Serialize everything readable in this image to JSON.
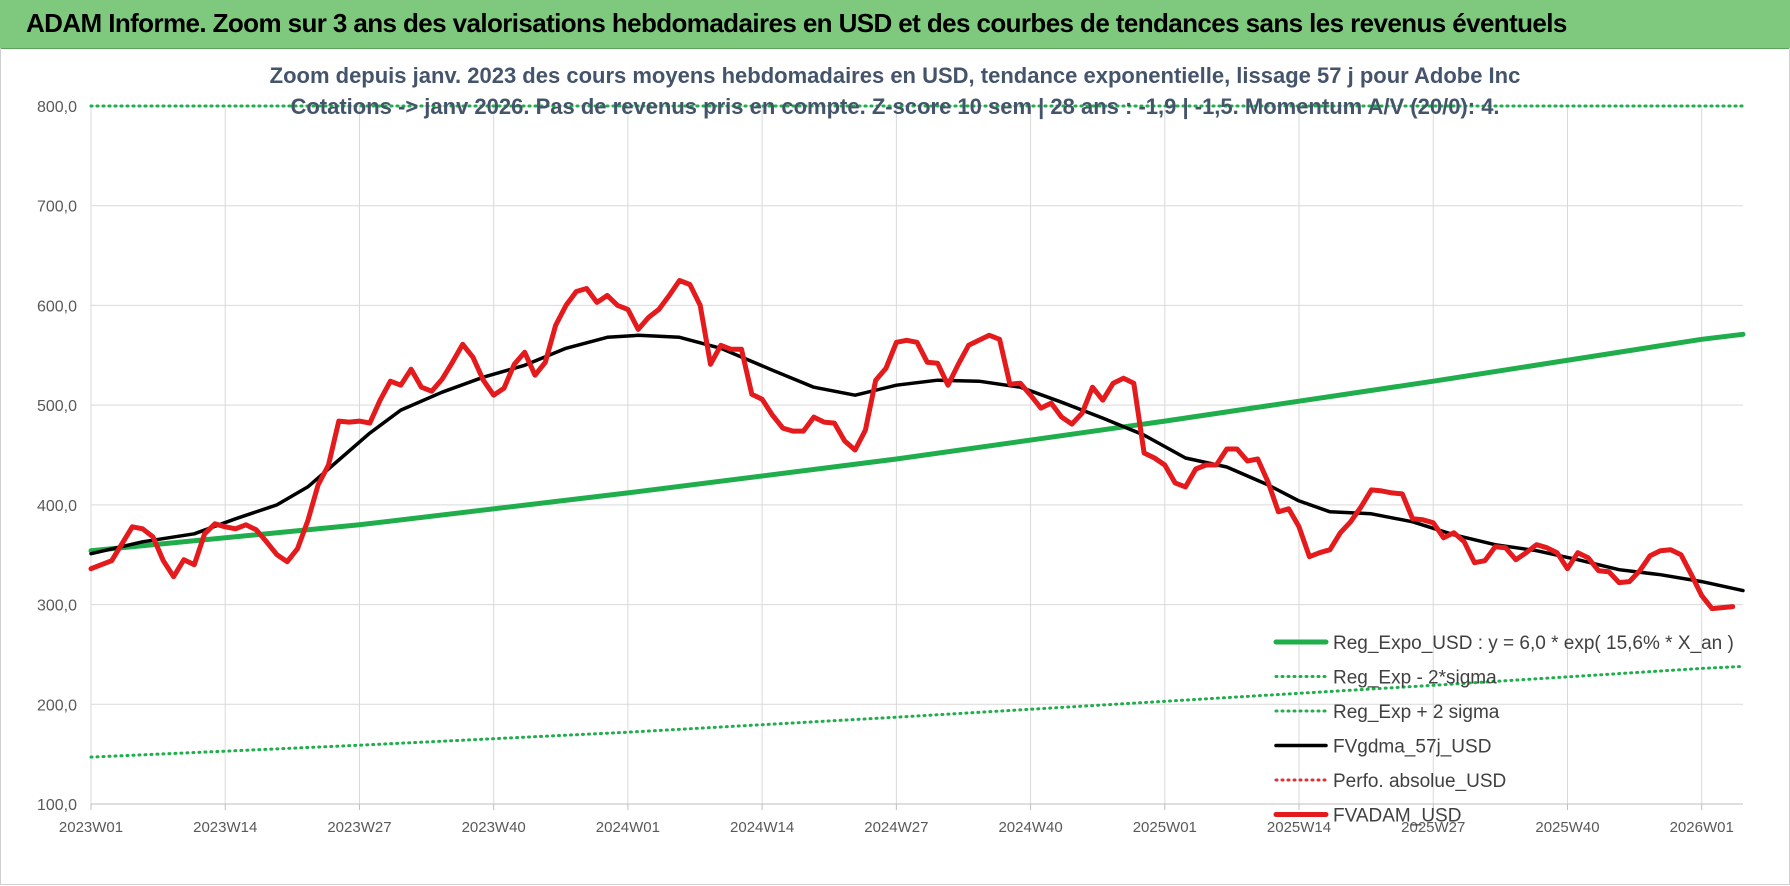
{
  "banner": {
    "title": "ADAM Informe. Zoom sur 3 ans des valorisations hebdomadaires en USD et des courbes de tendances sans les revenus éventuels"
  },
  "colors": {
    "banner_bg": "#7fc97f",
    "regression": "#1fae4b",
    "sigma": "#1fae4b",
    "gdma": "#000000",
    "perfo": "#e03030",
    "fvadam": "#e41a1c",
    "subtitle": "#44546a"
  },
  "chart_data": {
    "type": "line",
    "title": "Zoom depuis janv. 2023 des cours moyens hebdomadaires en USD, tendance exponentielle, lissage 57 j pour Adobe Inc",
    "subtitle": "Cotations -> janv 2026. Pas de revenus pris en compte. Z-score 10 sem | 28 ans : -1,9 | -1,5. Momentum A/V (20/0): 4.",
    "xlabel": "",
    "ylabel": "",
    "ylim": [
      100,
      800
    ],
    "y_ticks": [
      "100,0",
      "200,0",
      "300,0",
      "400,0",
      "500,0",
      "600,0",
      "700,0",
      "800,0"
    ],
    "x_range_weeks": [
      0,
      160
    ],
    "x_ticks": [
      {
        "label": "2023W01",
        "week": 0
      },
      {
        "label": "2023W14",
        "week": 13
      },
      {
        "label": "2023W27",
        "week": 26
      },
      {
        "label": "2023W40",
        "week": 39
      },
      {
        "label": "2024W01",
        "week": 52
      },
      {
        "label": "2024W14",
        "week": 65
      },
      {
        "label": "2024W27",
        "week": 78
      },
      {
        "label": "2024W40",
        "week": 91
      },
      {
        "label": "2025W01",
        "week": 104
      },
      {
        "label": "2025W14",
        "week": 117
      },
      {
        "label": "2025W27",
        "week": 130
      },
      {
        "label": "2025W40",
        "week": 143
      },
      {
        "label": "2026W01",
        "week": 156
      }
    ],
    "grid": true,
    "legend_position": "bottom-right",
    "series": [
      {
        "name": "Reg_Expo_USD : y = 6,0 * exp( 15,6% *  X_an )",
        "style": "solid-thick",
        "color": "#1fae4b",
        "points": [
          [
            0,
            354
          ],
          [
            26,
            380
          ],
          [
            52,
            412
          ],
          [
            78,
            446
          ],
          [
            104,
            484
          ],
          [
            130,
            524
          ],
          [
            156,
            566
          ],
          [
            160,
            571
          ]
        ]
      },
      {
        "name": "Reg_Exp - 2*sigma",
        "style": "dotted",
        "color": "#1fae4b",
        "points": [
          [
            0,
            147
          ],
          [
            26,
            159
          ],
          [
            52,
            172
          ],
          [
            78,
            187
          ],
          [
            104,
            203
          ],
          [
            130,
            219
          ],
          [
            156,
            236
          ],
          [
            160,
            238
          ]
        ]
      },
      {
        "name": "Reg_Exp + 2 sigma",
        "style": "dotted",
        "color": "#1fae4b",
        "points": [
          [
            0,
            800
          ],
          [
            160,
            800
          ]
        ]
      },
      {
        "name": "FVgdma_57j_USD",
        "style": "solid",
        "color": "#000000",
        "points": [
          [
            0,
            351
          ],
          [
            5,
            363
          ],
          [
            10,
            371
          ],
          [
            14,
            386
          ],
          [
            18,
            400
          ],
          [
            21,
            418
          ],
          [
            24,
            445
          ],
          [
            27,
            472
          ],
          [
            30,
            495
          ],
          [
            34,
            513
          ],
          [
            38,
            528
          ],
          [
            42,
            540
          ],
          [
            46,
            557
          ],
          [
            50,
            568
          ],
          [
            53,
            570
          ],
          [
            57,
            568
          ],
          [
            61,
            557
          ],
          [
            66,
            535
          ],
          [
            70,
            518
          ],
          [
            74,
            510
          ],
          [
            78,
            520
          ],
          [
            82,
            525
          ],
          [
            86,
            524
          ],
          [
            90,
            518
          ],
          [
            94,
            503
          ],
          [
            98,
            487
          ],
          [
            102,
            470
          ],
          [
            106,
            447
          ],
          [
            110,
            438
          ],
          [
            114,
            420
          ],
          [
            117,
            404
          ],
          [
            120,
            393
          ],
          [
            124,
            391
          ],
          [
            128,
            383
          ],
          [
            132,
            370
          ],
          [
            136,
            360
          ],
          [
            140,
            354
          ],
          [
            144,
            345
          ],
          [
            148,
            335
          ],
          [
            152,
            330
          ],
          [
            156,
            323
          ],
          [
            160,
            314
          ]
        ]
      },
      {
        "name": "Perfo. absolue_USD",
        "style": "dotted",
        "color": "#e03030",
        "points": []
      },
      {
        "name": "FVADAM_USD",
        "style": "solid-thick",
        "color": "#e41a1c",
        "points": [
          [
            0,
            336
          ],
          [
            2,
            344
          ],
          [
            4,
            378
          ],
          [
            5,
            376
          ],
          [
            6,
            368
          ],
          [
            7,
            344
          ],
          [
            8,
            328
          ],
          [
            9,
            345
          ],
          [
            10,
            340
          ],
          [
            11,
            371
          ],
          [
            12,
            381
          ],
          [
            13,
            378
          ],
          [
            14,
            376
          ],
          [
            15,
            380
          ],
          [
            16,
            375
          ],
          [
            17,
            363
          ],
          [
            18,
            350
          ],
          [
            19,
            343
          ],
          [
            20,
            356
          ],
          [
            21,
            384
          ],
          [
            22,
            420
          ],
          [
            23,
            440
          ],
          [
            24,
            484
          ],
          [
            25,
            483
          ],
          [
            26,
            484
          ],
          [
            27,
            482
          ],
          [
            28,
            505
          ],
          [
            29,
            524
          ],
          [
            30,
            520
          ],
          [
            31,
            536
          ],
          [
            32,
            518
          ],
          [
            33,
            514
          ],
          [
            34,
            526
          ],
          [
            35,
            543
          ],
          [
            36,
            561
          ],
          [
            37,
            548
          ],
          [
            38,
            525
          ],
          [
            39,
            510
          ],
          [
            40,
            517
          ],
          [
            41,
            541
          ],
          [
            42,
            553
          ],
          [
            43,
            530
          ],
          [
            44,
            543
          ],
          [
            45,
            580
          ],
          [
            46,
            600
          ],
          [
            47,
            614
          ],
          [
            48,
            617
          ],
          [
            49,
            603
          ],
          [
            50,
            610
          ],
          [
            51,
            600
          ],
          [
            52,
            596
          ],
          [
            53,
            576
          ],
          [
            54,
            588
          ],
          [
            55,
            596
          ],
          [
            56,
            610
          ],
          [
            57,
            625
          ],
          [
            58,
            621
          ],
          [
            59,
            600
          ],
          [
            60,
            541
          ],
          [
            61,
            560
          ],
          [
            62,
            556
          ],
          [
            63,
            556
          ],
          [
            64,
            511
          ],
          [
            65,
            506
          ],
          [
            66,
            490
          ],
          [
            67,
            477
          ],
          [
            68,
            474
          ],
          [
            69,
            474
          ],
          [
            70,
            488
          ],
          [
            71,
            483
          ],
          [
            72,
            482
          ],
          [
            73,
            464
          ],
          [
            74,
            455
          ],
          [
            75,
            475
          ],
          [
            76,
            525
          ],
          [
            77,
            537
          ],
          [
            78,
            563
          ],
          [
            79,
            565
          ],
          [
            80,
            563
          ],
          [
            81,
            543
          ],
          [
            82,
            542
          ],
          [
            83,
            520
          ],
          [
            84,
            541
          ],
          [
            85,
            560
          ],
          [
            86,
            565
          ],
          [
            87,
            570
          ],
          [
            88,
            566
          ],
          [
            89,
            521
          ],
          [
            90,
            522
          ],
          [
            91,
            510
          ],
          [
            92,
            497
          ],
          [
            93,
            502
          ],
          [
            94,
            488
          ],
          [
            95,
            481
          ],
          [
            96,
            492
          ],
          [
            97,
            518
          ],
          [
            98,
            505
          ],
          [
            99,
            522
          ],
          [
            100,
            527
          ],
          [
            101,
            522
          ],
          [
            102,
            452
          ],
          [
            103,
            447
          ],
          [
            104,
            440
          ],
          [
            105,
            422
          ],
          [
            106,
            418
          ],
          [
            107,
            436
          ],
          [
            108,
            440
          ],
          [
            109,
            440
          ],
          [
            110,
            456
          ],
          [
            111,
            456
          ],
          [
            112,
            444
          ],
          [
            113,
            446
          ],
          [
            114,
            423
          ],
          [
            115,
            393
          ],
          [
            116,
            396
          ],
          [
            117,
            378
          ],
          [
            118,
            348
          ],
          [
            119,
            352
          ],
          [
            120,
            355
          ],
          [
            121,
            372
          ],
          [
            122,
            383
          ],
          [
            123,
            398
          ],
          [
            124,
            415
          ],
          [
            125,
            414
          ],
          [
            126,
            412
          ],
          [
            127,
            411
          ],
          [
            128,
            386
          ],
          [
            129,
            385
          ],
          [
            130,
            382
          ],
          [
            131,
            367
          ],
          [
            132,
            372
          ],
          [
            133,
            363
          ],
          [
            134,
            342
          ],
          [
            135,
            344
          ],
          [
            136,
            358
          ],
          [
            137,
            357
          ],
          [
            138,
            345
          ],
          [
            139,
            352
          ],
          [
            140,
            360
          ],
          [
            141,
            357
          ],
          [
            142,
            352
          ],
          [
            143,
            336
          ],
          [
            144,
            352
          ],
          [
            145,
            347
          ],
          [
            146,
            334
          ],
          [
            147,
            333
          ],
          [
            148,
            322
          ],
          [
            149,
            323
          ],
          [
            150,
            334
          ],
          [
            151,
            349
          ],
          [
            152,
            354
          ],
          [
            153,
            355
          ],
          [
            154,
            350
          ],
          [
            155,
            330
          ],
          [
            156,
            309
          ],
          [
            157,
            296
          ],
          [
            158,
            297
          ],
          [
            159,
            298
          ]
        ]
      }
    ]
  }
}
